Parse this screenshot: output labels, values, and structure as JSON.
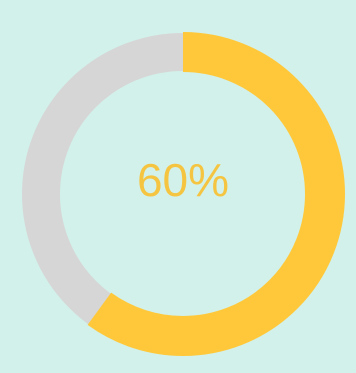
{
  "progress": {
    "value": 0.6,
    "label": "60%"
  },
  "colors": {
    "background": "#d2f1ea",
    "track": "#d6d6d6",
    "fill": "#ffc83a",
    "text": "#f5c542"
  }
}
